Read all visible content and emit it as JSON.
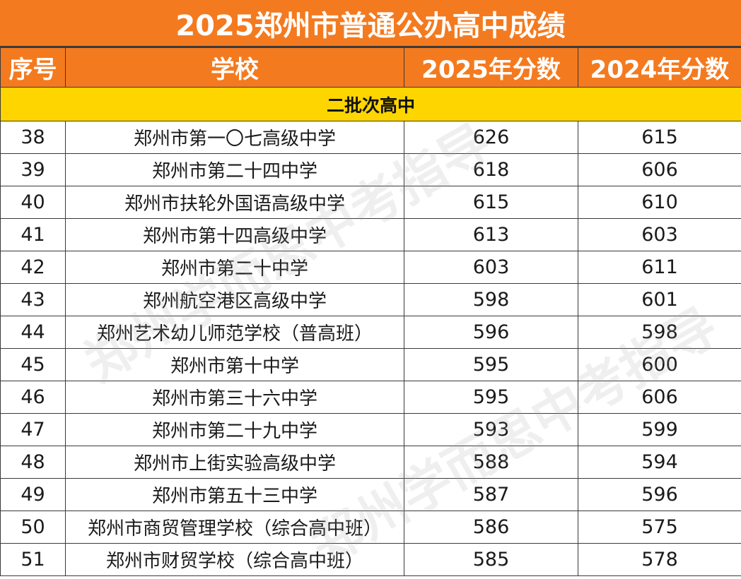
{
  "title": "2025郑州市普通公办高中成绩",
  "headers": {
    "index": "序号",
    "school": "学校",
    "score_2025": "2025年分数",
    "score_2024": "2024年分数"
  },
  "group_label": "二批次高中",
  "rows": [
    {
      "index": "38",
      "school": "郑州市第一〇七高级中学",
      "score_2025": "626",
      "score_2024": "615"
    },
    {
      "index": "39",
      "school": "郑州市第二十四中学",
      "score_2025": "618",
      "score_2024": "606"
    },
    {
      "index": "40",
      "school": "郑州市扶轮外国语高级中学",
      "score_2025": "615",
      "score_2024": "610"
    },
    {
      "index": "41",
      "school": "郑州市第十四高级中学",
      "score_2025": "613",
      "score_2024": "603"
    },
    {
      "index": "42",
      "school": "郑州市第二十中学",
      "score_2025": "603",
      "score_2024": "611"
    },
    {
      "index": "43",
      "school": "郑州航空港区高级中学",
      "score_2025": "598",
      "score_2024": "601"
    },
    {
      "index": "44",
      "school": "郑州艺术幼儿师范学校（普高班）",
      "score_2025": "596",
      "score_2024": "598"
    },
    {
      "index": "45",
      "school": "郑州市第十中学",
      "score_2025": "595",
      "score_2024": "600"
    },
    {
      "index": "46",
      "school": "郑州市第三十六中学",
      "score_2025": "595",
      "score_2024": "606"
    },
    {
      "index": "47",
      "school": "郑州市第二十九中学",
      "score_2025": "593",
      "score_2024": "599"
    },
    {
      "index": "48",
      "school": "郑州市上街实验高级中学",
      "score_2025": "588",
      "score_2024": "594"
    },
    {
      "index": "49",
      "school": "郑州市第五十三中学",
      "score_2025": "587",
      "score_2024": "596"
    },
    {
      "index": "50",
      "school": "郑州市商贸管理学校（综合高中班）",
      "score_2025": "586",
      "score_2024": "575"
    },
    {
      "index": "51",
      "school": "郑州市财贸学校（综合高中班）",
      "score_2025": "585",
      "score_2024": "578"
    }
  ],
  "watermark": "郑州学而思中考指导",
  "colors": {
    "header_orange": "#F47A1F",
    "group_yellow": "#FFD500",
    "border": "#3a3a3a"
  }
}
